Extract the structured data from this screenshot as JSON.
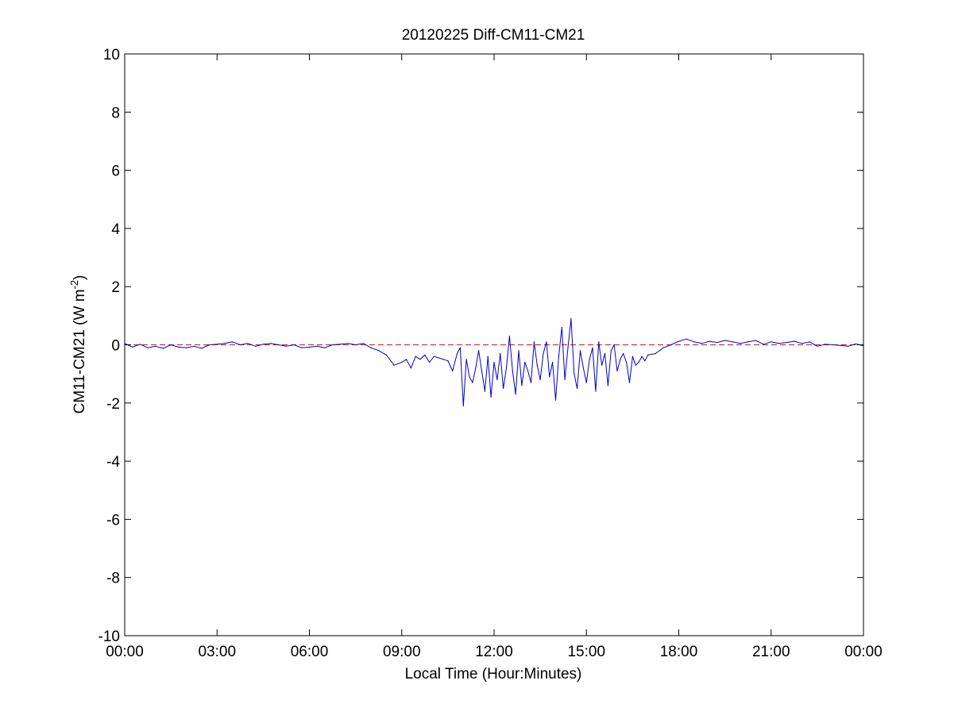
{
  "colors": {
    "series": "#0000c8",
    "reference": "#ff0000",
    "axes": "#000000",
    "background": "#ffffff"
  },
  "chart_data": {
    "type": "line",
    "title": "20120225 Diff-CM11-CM21",
    "xlabel": "Local Time (Hour:Minutes)",
    "ylabel": {
      "base": "CM11-CM21 (W m",
      "superscript": "-2",
      "suffix": ")"
    },
    "xlim_hours": [
      0,
      24
    ],
    "ylim": [
      -10,
      10
    ],
    "x_ticks": [
      {
        "hour": 0,
        "label": "00:00"
      },
      {
        "hour": 3,
        "label": "03:00"
      },
      {
        "hour": 6,
        "label": "06:00"
      },
      {
        "hour": 9,
        "label": "09:00"
      },
      {
        "hour": 12,
        "label": "12:00"
      },
      {
        "hour": 15,
        "label": "15:00"
      },
      {
        "hour": 18,
        "label": "18:00"
      },
      {
        "hour": 21,
        "label": "21:00"
      },
      {
        "hour": 24,
        "label": "00:00"
      }
    ],
    "y_ticks": [
      {
        "value": 10,
        "label": "10"
      },
      {
        "value": 8,
        "label": "8"
      },
      {
        "value": 6,
        "label": "6"
      },
      {
        "value": 4,
        "label": "4"
      },
      {
        "value": 2,
        "label": "2"
      },
      {
        "value": 0,
        "label": "0"
      },
      {
        "value": -2,
        "label": "-2"
      },
      {
        "value": -4,
        "label": "-4"
      },
      {
        "value": -6,
        "label": "-6"
      },
      {
        "value": -8,
        "label": "-8"
      },
      {
        "value": -10,
        "label": "-10"
      }
    ],
    "grid": false,
    "reference_line": {
      "y": 0,
      "style": "dashed"
    },
    "series": [
      {
        "x_hours": [
          0.0,
          0.25,
          0.5,
          0.75,
          1.0,
          1.25,
          1.5,
          1.75,
          2.0,
          2.25,
          2.5,
          2.75,
          3.0,
          3.25,
          3.5,
          3.75,
          4.0,
          4.25,
          4.5,
          4.75,
          5.0,
          5.25,
          5.5,
          5.75,
          6.0,
          6.25,
          6.5,
          6.75,
          7.0,
          7.25,
          7.5,
          7.75,
          8.0,
          8.25,
          8.5,
          8.75,
          9.0,
          9.15,
          9.3,
          9.45,
          9.6,
          9.75,
          9.9,
          10.05,
          10.2,
          10.35,
          10.5,
          10.65,
          10.8,
          10.9,
          11.0,
          11.1,
          11.2,
          11.3,
          11.4,
          11.5,
          11.6,
          11.7,
          11.8,
          11.9,
          12.0,
          12.1,
          12.2,
          12.3,
          12.4,
          12.5,
          12.6,
          12.7,
          12.8,
          12.9,
          13.0,
          13.1,
          13.2,
          13.3,
          13.4,
          13.5,
          13.6,
          13.7,
          13.8,
          13.9,
          14.0,
          14.1,
          14.2,
          14.3,
          14.4,
          14.5,
          14.6,
          14.7,
          14.8,
          14.9,
          15.0,
          15.1,
          15.2,
          15.3,
          15.4,
          15.5,
          15.6,
          15.7,
          15.8,
          15.9,
          16.0,
          16.1,
          16.2,
          16.3,
          16.4,
          16.5,
          16.6,
          16.7,
          16.8,
          16.9,
          17.0,
          17.25,
          17.5,
          17.75,
          18.0,
          18.25,
          18.5,
          18.75,
          19.0,
          19.25,
          19.5,
          19.75,
          20.0,
          20.25,
          20.5,
          20.75,
          21.0,
          21.25,
          21.5,
          21.75,
          22.0,
          22.25,
          22.5,
          22.75,
          23.0,
          23.25,
          23.5,
          23.75,
          24.0
        ],
        "values": [
          0.05,
          -0.08,
          0.02,
          -0.1,
          -0.05,
          -0.12,
          0.0,
          -0.08,
          -0.1,
          -0.05,
          -0.12,
          0.0,
          0.02,
          0.05,
          0.1,
          0.0,
          0.05,
          -0.05,
          0.02,
          0.05,
          0.0,
          -0.05,
          0.0,
          -0.1,
          -0.08,
          -0.05,
          -0.1,
          0.0,
          0.02,
          0.05,
          0.0,
          0.05,
          -0.1,
          -0.2,
          -0.35,
          -0.7,
          -0.6,
          -0.5,
          -0.8,
          -0.4,
          -0.5,
          -0.35,
          -0.6,
          -0.4,
          -0.45,
          -0.5,
          -0.55,
          -0.9,
          -0.3,
          -0.1,
          -2.1,
          -0.5,
          -1.1,
          -1.3,
          -0.8,
          -0.2,
          -0.9,
          -1.6,
          -0.4,
          -1.8,
          -0.6,
          -1.2,
          -0.3,
          -1.5,
          -0.8,
          0.3,
          -0.9,
          -1.7,
          -0.2,
          -1.4,
          -0.6,
          -0.9,
          -1.3,
          0.1,
          -0.7,
          -1.2,
          -0.3,
          0.1,
          -1.1,
          -0.6,
          -1.9,
          -0.4,
          0.6,
          -1.2,
          -0.1,
          0.9,
          -1.0,
          -1.5,
          -0.2,
          -0.8,
          -1.3,
          -0.5,
          -0.1,
          -1.6,
          0.1,
          -0.7,
          -0.3,
          -1.4,
          -0.2,
          0.0,
          -0.9,
          -0.5,
          -0.3,
          -0.6,
          -1.3,
          -0.4,
          -0.7,
          -0.6,
          -0.4,
          -0.55,
          -0.35,
          -0.3,
          -0.1,
          0.0,
          0.12,
          0.2,
          0.1,
          0.05,
          0.12,
          0.08,
          0.15,
          0.1,
          0.05,
          0.1,
          0.15,
          0.02,
          0.1,
          0.05,
          0.08,
          0.12,
          0.05,
          0.1,
          -0.05,
          0.02,
          0.0,
          -0.02,
          -0.05,
          0.03,
          -0.03
        ]
      }
    ]
  }
}
